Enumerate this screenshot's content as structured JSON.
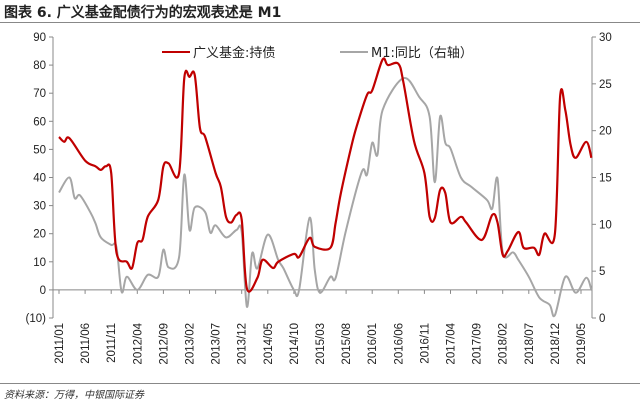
{
  "title": "图表 6. 广义基金配债行为的宏观表述是 M1",
  "source": "资料来源：万得，中银国际证券",
  "chart_data": {
    "type": "line",
    "title": "图表 6. 广义基金配债行为的宏观表述是 M1",
    "x_tick_labels": [
      "2011/01",
      "2011/06",
      "2011/11",
      "2012/04",
      "2012/09",
      "2013/02",
      "2013/07",
      "2013/12",
      "2014/05",
      "2014/10",
      "2015/03",
      "2015/08",
      "2016/01",
      "2016/06",
      "2016/11",
      "2017/04",
      "2017/09",
      "2018/02",
      "2018/07",
      "2018/12",
      "2019/05"
    ],
    "x_start": "2011/01",
    "x_end": "2019/07",
    "left_axis": {
      "ylim": [
        -10,
        90
      ],
      "ticks": [
        -10,
        0,
        10,
        20,
        30,
        40,
        50,
        60,
        70,
        80,
        90
      ],
      "tick_labels": [
        "(10)",
        "0",
        "10",
        "20",
        "30",
        "40",
        "50",
        "60",
        "70",
        "80",
        "90"
      ]
    },
    "right_axis": {
      "ylim": [
        0,
        30
      ],
      "ticks": [
        0,
        5,
        10,
        15,
        20,
        25,
        30
      ],
      "tick_labels": [
        "0",
        "5",
        "10",
        "15",
        "20",
        "25",
        "30"
      ]
    },
    "legend_position": "top",
    "series": [
      {
        "name": "广义基金:持债",
        "axis": "left",
        "color": "#C00000",
        "points": [
          [
            "2011/01",
            54.4
          ],
          [
            "2011/02",
            52.7
          ],
          [
            "2011/03",
            54
          ],
          [
            "2011/06",
            46
          ],
          [
            "2011/08",
            44
          ],
          [
            "2011/09",
            42.7
          ],
          [
            "2011/10",
            44
          ],
          [
            "2011/11",
            41.6
          ],
          [
            "2011/12",
            13.5
          ],
          [
            "2012/02",
            10
          ],
          [
            "2012/03",
            7.8
          ],
          [
            "2012/04",
            16.7
          ],
          [
            "2012/05",
            17.8
          ],
          [
            "2012/06",
            26
          ],
          [
            "2012/08",
            32
          ],
          [
            "2012/09",
            44
          ],
          [
            "2012/10",
            45
          ],
          [
            "2012/12",
            41.6
          ],
          [
            "2013/01",
            75.4
          ],
          [
            "2013/02",
            75.8
          ],
          [
            "2013/03",
            76.5
          ],
          [
            "2013/04",
            57.7
          ],
          [
            "2013/05",
            54.4
          ],
          [
            "2013/07",
            41.6
          ],
          [
            "2013/08",
            36.7
          ],
          [
            "2013/09",
            26
          ],
          [
            "2013/10",
            24
          ],
          [
            "2013/11",
            26.7
          ],
          [
            "2013/12",
            25
          ],
          [
            "2014/01",
            0.5
          ],
          [
            "2014/03",
            4.3
          ],
          [
            "2014/04",
            10.7
          ],
          [
            "2014/06",
            7.8
          ],
          [
            "2014/07",
            10
          ],
          [
            "2014/10",
            12.8
          ],
          [
            "2014/11",
            11.7
          ],
          [
            "2015/01",
            18.5
          ],
          [
            "2015/02",
            15.3
          ],
          [
            "2015/05",
            15
          ],
          [
            "2015/06",
            24
          ],
          [
            "2015/07",
            34.5
          ],
          [
            "2015/09",
            51
          ],
          [
            "2015/10",
            58
          ],
          [
            "2015/12",
            69.4
          ],
          [
            "2016/01",
            71
          ],
          [
            "2016/03",
            82
          ],
          [
            "2016/04",
            80
          ],
          [
            "2016/06",
            80.5
          ],
          [
            "2016/07",
            73.7
          ],
          [
            "2016/09",
            53
          ],
          [
            "2016/11",
            41.6
          ],
          [
            "2016/12",
            26
          ],
          [
            "2017/01",
            25.6
          ],
          [
            "2017/02",
            35.6
          ],
          [
            "2017/03",
            34.5
          ],
          [
            "2017/04",
            24
          ],
          [
            "2017/06",
            26
          ],
          [
            "2017/07",
            24
          ],
          [
            "2017/10",
            17.8
          ],
          [
            "2017/12",
            26.7
          ],
          [
            "2018/01",
            24
          ],
          [
            "2018/02",
            12.5
          ],
          [
            "2018/03",
            14
          ],
          [
            "2018/05",
            20.6
          ],
          [
            "2018/06",
            15
          ],
          [
            "2018/08",
            15
          ],
          [
            "2018/09",
            12.5
          ],
          [
            "2018/10",
            20
          ],
          [
            "2018/12",
            20
          ],
          [
            "2019/01",
            68.7
          ],
          [
            "2019/02",
            64
          ],
          [
            "2019/03",
            51.6
          ],
          [
            "2019/04",
            47
          ],
          [
            "2019/06",
            52.7
          ],
          [
            "2019/07",
            47
          ]
        ]
      },
      {
        "name": "M1:同比（右轴）",
        "axis": "right",
        "color": "#A6A6A6",
        "points": [
          [
            "2011/01",
            13.4
          ],
          [
            "2011/03",
            15
          ],
          [
            "2011/04",
            12.8
          ],
          [
            "2011/05",
            13.1
          ],
          [
            "2011/07",
            11.3
          ],
          [
            "2011/08",
            10.1
          ],
          [
            "2011/09",
            8.6
          ],
          [
            "2011/11",
            7.8
          ],
          [
            "2011/12",
            7.6
          ],
          [
            "2012/01",
            2.8
          ],
          [
            "2012/02",
            4.4
          ],
          [
            "2012/04",
            3
          ],
          [
            "2012/06",
            4.6
          ],
          [
            "2012/08",
            4.4
          ],
          [
            "2012/09",
            7.3
          ],
          [
            "2012/10",
            5.4
          ],
          [
            "2012/12",
            6.5
          ],
          [
            "2013/01",
            15.3
          ],
          [
            "2013/02",
            9.4
          ],
          [
            "2013/03",
            11.8
          ],
          [
            "2013/05",
            11.3
          ],
          [
            "2013/06",
            9.1
          ],
          [
            "2013/07",
            9.9
          ],
          [
            "2013/09",
            8.6
          ],
          [
            "2013/11",
            9.4
          ],
          [
            "2013/12",
            9.2
          ],
          [
            "2014/01",
            1.2
          ],
          [
            "2014/02",
            6.9
          ],
          [
            "2014/03",
            5.3
          ],
          [
            "2014/05",
            8.9
          ],
          [
            "2014/07",
            6.2
          ],
          [
            "2014/08",
            5.3
          ],
          [
            "2014/10",
            3
          ],
          [
            "2014/11",
            3
          ],
          [
            "2015/01",
            10.7
          ],
          [
            "2015/02",
            5.1
          ],
          [
            "2015/03",
            2.7
          ],
          [
            "2015/05",
            4.4
          ],
          [
            "2015/06",
            4.3
          ],
          [
            "2015/08",
            9.4
          ],
          [
            "2015/11",
            15.6
          ],
          [
            "2015/12",
            15.3
          ],
          [
            "2016/01",
            18.7
          ],
          [
            "2016/02",
            17.4
          ],
          [
            "2016/03",
            22.2
          ],
          [
            "2016/07",
            25.6
          ],
          [
            "2016/10",
            23.6
          ],
          [
            "2016/12",
            21.5
          ],
          [
            "2017/01",
            14.5
          ],
          [
            "2017/02",
            21.5
          ],
          [
            "2017/03",
            18.7
          ],
          [
            "2017/04",
            18.1
          ],
          [
            "2017/06",
            15
          ],
          [
            "2017/08",
            14
          ],
          [
            "2017/11",
            12.6
          ],
          [
            "2017/12",
            11.7
          ],
          [
            "2018/01",
            14.9
          ],
          [
            "2018/02",
            7
          ],
          [
            "2018/04",
            7
          ],
          [
            "2018/05",
            6.2
          ],
          [
            "2018/07",
            4.4
          ],
          [
            "2018/09",
            2.2
          ],
          [
            "2018/11",
            1.4
          ],
          [
            "2018/12",
            0.3
          ],
          [
            "2019/02",
            4.4
          ],
          [
            "2019/04",
            2.7
          ],
          [
            "2019/06",
            4.3
          ],
          [
            "2019/07",
            3
          ]
        ]
      }
    ]
  }
}
